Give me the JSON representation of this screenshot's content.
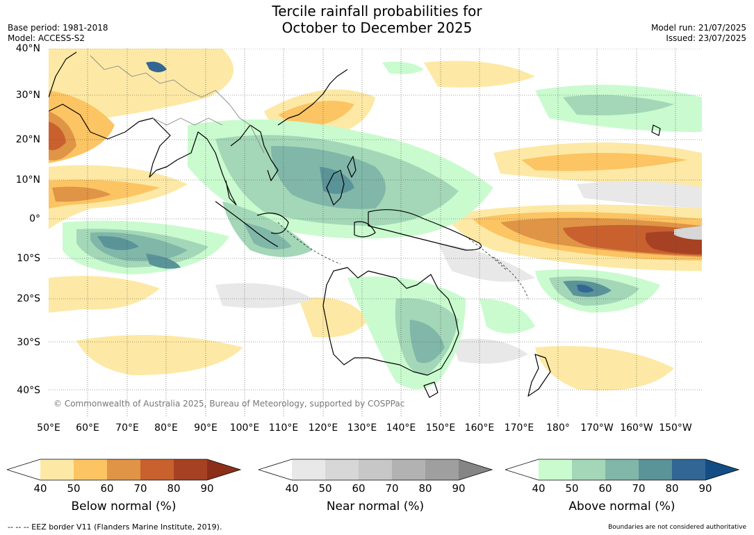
{
  "title_line1": "Tercile rainfall probabilities for",
  "title_line2": "October to December 2025",
  "base_period": "Base period: 1981-2018",
  "model": "Model: ACCESS-S2",
  "model_run": "Model run: 21/07/2025",
  "issued": "Issued: 23/07/2025",
  "copyright": "© Commonwealth of Australia 2025, Bureau of Meteorology, supported by COSPPac",
  "lat_ticks": [
    "40°N",
    "30°N",
    "20°N",
    "10°N",
    "0°",
    "10°S",
    "20°S",
    "30°S",
    "40°S"
  ],
  "lon_ticks": [
    "50°E",
    "60°E",
    "70°E",
    "80°E",
    "90°E",
    "100°E",
    "110°E",
    "120°E",
    "130°E",
    "140°E",
    "150°E",
    "160°E",
    "170°E",
    "180°",
    "170°W",
    "160°W",
    "150°W"
  ],
  "colorbars": {
    "below": {
      "label": "Below normal (%)",
      "ticks": [
        "40",
        "50",
        "60",
        "70",
        "80",
        "90"
      ],
      "colors": [
        "#ffffff",
        "#fde9a5",
        "#fcc463",
        "#df9446",
        "#c9612f",
        "#a64223",
        "#8c2f1a"
      ]
    },
    "near": {
      "label": "Near normal (%)",
      "ticks": [
        "40",
        "50",
        "60",
        "70",
        "80",
        "90"
      ],
      "colors": [
        "#ffffff",
        "#e8e8e8",
        "#d7d7d7",
        "#c7c7c7",
        "#b2b2b2",
        "#9f9f9f",
        "#858585"
      ]
    },
    "above": {
      "label": "Above normal (%)",
      "ticks": [
        "40",
        "50",
        "60",
        "70",
        "80",
        "90"
      ],
      "colors": [
        "#ffffff",
        "#c9fbcf",
        "#a3d7b7",
        "#80b7a9",
        "#5a9398",
        "#326694",
        "#124e85"
      ]
    }
  },
  "eez_note": "--  --  -- EEZ border V11 (Flanders Marine Institute, 2019).",
  "boundary_note": "Boundaries are not considered authoritative"
}
